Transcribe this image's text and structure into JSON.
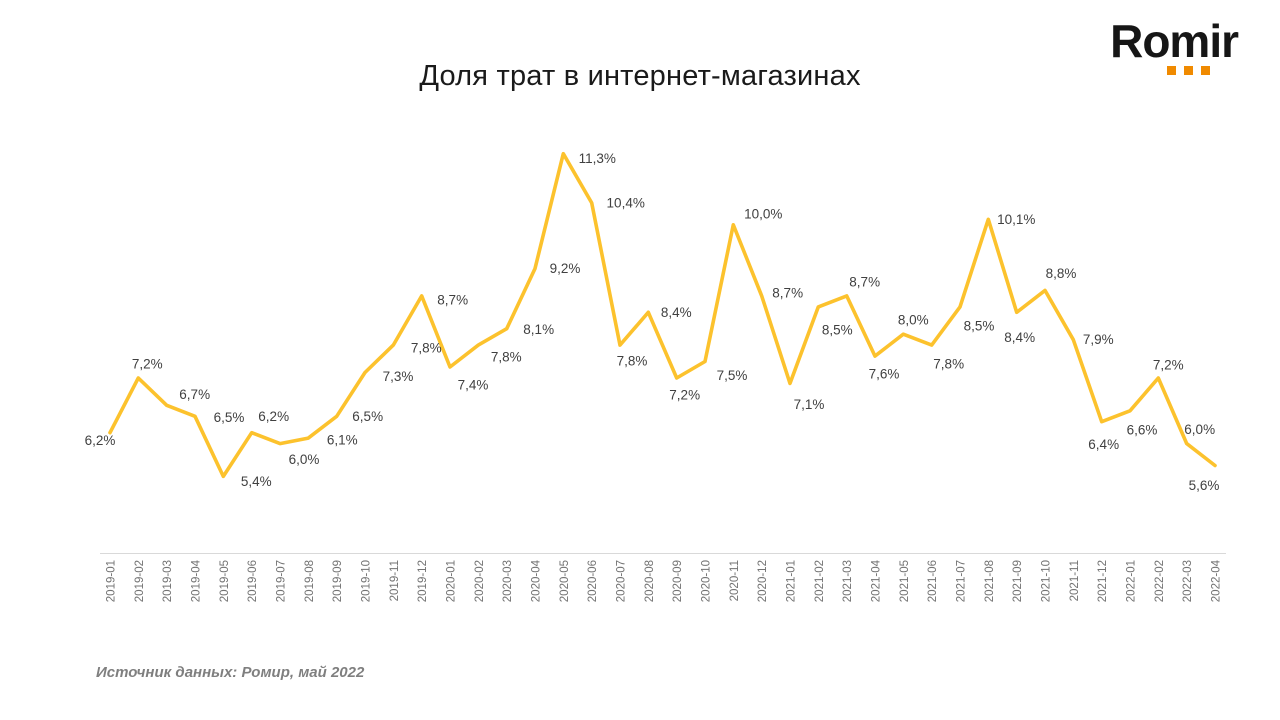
{
  "header": {
    "title": "Доля трат в интернет-магазинах",
    "logo_text": "Romir"
  },
  "chart_data": {
    "type": "line",
    "title": "Доля трат в интернет-магазинах",
    "xlabel": "",
    "ylabel": "",
    "ylim": [
      4,
      12
    ],
    "grid": false,
    "legend_position": "none",
    "categories": [
      "2019-01",
      "2019-02",
      "2019-03",
      "2019-04",
      "2019-05",
      "2019-06",
      "2019-07",
      "2019-08",
      "2019-09",
      "2019-10",
      "2019-11",
      "2019-12",
      "2020-01",
      "2020-02",
      "2020-03",
      "2020-04",
      "2020-05",
      "2020-06",
      "2020-07",
      "2020-08",
      "2020-09",
      "2020-10",
      "2020-11",
      "2020-12",
      "2021-01",
      "2021-02",
      "2021-03",
      "2021-04",
      "2021-05",
      "2021-06",
      "2021-07",
      "2021-08",
      "2021-09",
      "2021-10",
      "2021-11",
      "2021-12",
      "2022-01",
      "2022-02",
      "2022-03",
      "2022-04"
    ],
    "values": [
      6.2,
      7.2,
      6.7,
      6.5,
      5.4,
      6.2,
      6.0,
      6.1,
      6.5,
      7.3,
      7.8,
      8.7,
      7.4,
      7.8,
      8.1,
      9.2,
      11.3,
      10.4,
      7.8,
      8.4,
      7.2,
      7.5,
      10.0,
      8.7,
      7.1,
      8.5,
      8.7,
      7.6,
      8.0,
      7.8,
      8.5,
      10.1,
      8.4,
      8.8,
      7.9,
      6.4,
      6.6,
      7.2,
      6.0,
      5.6
    ],
    "point_labels": [
      "6,2%",
      "7,2%",
      "6,7%",
      "6,5%",
      "5,4%",
      "6,2%",
      "6,0%",
      "6,1%",
      "6,5%",
      "7,3%",
      "7,8%",
      "8,7%",
      "7,4%",
      "7,8%",
      "8,1%",
      "9,2%",
      "11,3%",
      "10,4%",
      "7,8%",
      "8,4%",
      "7,2%",
      "7,5%",
      "10,0%",
      "8,7%",
      "7,1%",
      "8,5%",
      "8,7%",
      "7,6%",
      "8,0%",
      "7,8%",
      "8,5%",
      "10,1%",
      "8,4%",
      "8,8%",
      "7,9%",
      "6,4%",
      "6,6%",
      "7,2%",
      "6,0%",
      "5,6%"
    ]
  },
  "colors": {
    "line": "#FCC22D",
    "data_label": "#404040",
    "axis_line": "#D9D9D9",
    "axis_text": "#737373",
    "logo_orange": "#F08A00",
    "title_text": "#1A1A1A",
    "source_text": "#7F7F7F"
  },
  "footer": {
    "source_note": "Источник данных: Ромир, май 2022"
  }
}
